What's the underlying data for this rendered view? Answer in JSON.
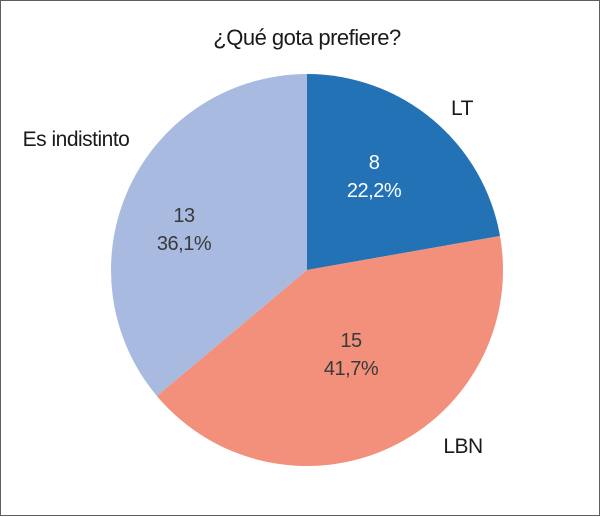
{
  "chart_data": {
    "type": "pie",
    "title": "¿Qué gota prefiere?",
    "total": 36,
    "start_angle_deg": 0,
    "direction": "clockwise",
    "legend_position": "none",
    "slices": [
      {
        "label": "LT",
        "value": 8,
        "pct_display": "22,2%",
        "pct": 22.2,
        "color": "#2272b5",
        "text_color": "#ffffff"
      },
      {
        "label": "LBN",
        "value": 15,
        "pct_display": "41,7%",
        "pct": 41.7,
        "color": "#f2907c",
        "text_color": "#3a3a3a"
      },
      {
        "label": "Es indistinto",
        "value": 13,
        "pct_display": "36,1%",
        "pct": 36.1,
        "color": "#a9bae1",
        "text_color": "#3a3a3a"
      }
    ]
  },
  "frame": {
    "border_color": "#5e5e5e",
    "background": "#ffffff"
  }
}
